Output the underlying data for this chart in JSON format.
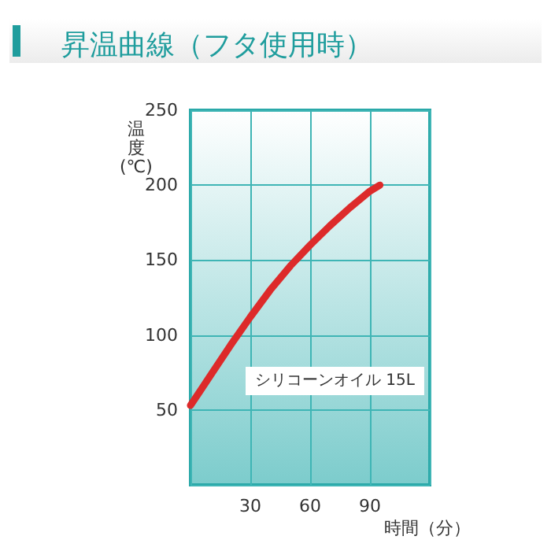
{
  "chart_data": {
    "type": "line",
    "title": "昇温曲線（フタ使用時）",
    "ylabel": "温度(℃)",
    "xlabel": "時間（分）",
    "x": [
      0,
      10,
      20,
      30,
      40,
      50,
      60,
      70,
      80,
      90,
      95
    ],
    "series": [
      {
        "color": "#dd2a2a",
        "values": [
          53,
          73,
          93,
          112,
          130,
          146,
          160,
          173,
          185,
          196,
          200
        ]
      }
    ],
    "annotations": [
      "シリコーンオイル 15L"
    ],
    "xlim": [
      0,
      120
    ],
    "xticks": [
      {
        "value": 0,
        "label": null
      },
      30,
      60,
      90,
      {
        "value": 120,
        "label": null
      }
    ],
    "ylim": [
      0,
      250
    ],
    "yticks": [
      {
        "value": 0,
        "label": null
      },
      50,
      100,
      150,
      200,
      250
    ],
    "grid": true,
    "marker": "none",
    "line_style": "solid"
  }
}
